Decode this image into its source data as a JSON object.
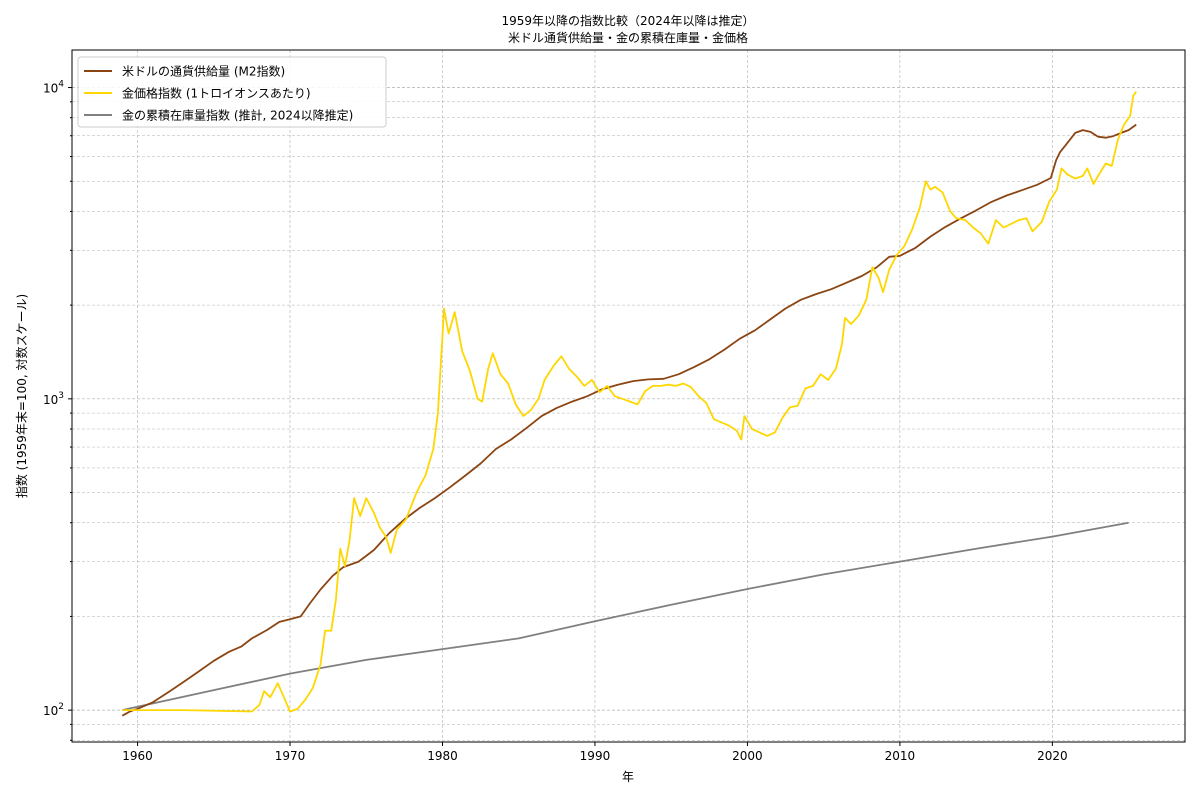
{
  "chart_data": {
    "type": "line",
    "title": "1959年以降の指数比較（2024年以降は推定）",
    "subtitle": "米ドル通貨供給量・金の累積在庫量・金価格",
    "xlabel": "年",
    "ylabel": "指数 (1959年末=100, 対数スケール)",
    "y_scale": "log",
    "xlim": [
      1955.7,
      2028.7
    ],
    "ylim": [
      79,
      13200
    ],
    "x_ticks": [
      1960,
      1970,
      1980,
      1990,
      2000,
      2010,
      2020
    ],
    "x_tick_labels": [
      "1960",
      "1970",
      "1980",
      "1990",
      "2000",
      "2010",
      "2020"
    ],
    "y_ticks": [
      100,
      1000,
      10000
    ],
    "y_tick_labels": [
      {
        "base": "10",
        "exp": "2"
      },
      {
        "base": "10",
        "exp": "3"
      },
      {
        "base": "10",
        "exp": "4"
      }
    ],
    "grid": true,
    "legend_position": "top-left",
    "series": [
      {
        "name": "米ドルの通貨供給量 (M2指数)",
        "color": "#8B4513",
        "points": [
          [
            1959.0,
            96
          ],
          [
            1959.5,
            99
          ],
          [
            1960.0,
            101
          ],
          [
            1961.0,
            106
          ],
          [
            1962.0,
            114
          ],
          [
            1963.0,
            123
          ],
          [
            1964.0,
            133
          ],
          [
            1965.0,
            144
          ],
          [
            1966.0,
            154
          ],
          [
            1966.8,
            160
          ],
          [
            1967.5,
            170
          ],
          [
            1968.5,
            181
          ],
          [
            1969.3,
            192
          ],
          [
            1970.0,
            196
          ],
          [
            1970.7,
            200
          ],
          [
            1971.3,
            220
          ],
          [
            1972.0,
            244
          ],
          [
            1972.8,
            270
          ],
          [
            1973.5,
            288
          ],
          [
            1974.5,
            300
          ],
          [
            1975.5,
            327
          ],
          [
            1976.5,
            370
          ],
          [
            1977.5,
            410
          ],
          [
            1978.5,
            446
          ],
          [
            1979.5,
            480
          ],
          [
            1980.5,
            520
          ],
          [
            1981.5,
            567
          ],
          [
            1982.5,
            620
          ],
          [
            1983.5,
            690
          ],
          [
            1984.5,
            740
          ],
          [
            1985.5,
            805
          ],
          [
            1986.5,
            880
          ],
          [
            1987.5,
            935
          ],
          [
            1988.5,
            980
          ],
          [
            1989.5,
            1020
          ],
          [
            1990.5,
            1075
          ],
          [
            1991.5,
            1110
          ],
          [
            1992.5,
            1140
          ],
          [
            1993.5,
            1155
          ],
          [
            1994.5,
            1160
          ],
          [
            1995.5,
            1200
          ],
          [
            1996.5,
            1265
          ],
          [
            1997.5,
            1340
          ],
          [
            1998.5,
            1440
          ],
          [
            1999.5,
            1560
          ],
          [
            2000.5,
            1660
          ],
          [
            2001.5,
            1800
          ],
          [
            2002.5,
            1950
          ],
          [
            2003.5,
            2080
          ],
          [
            2004.5,
            2170
          ],
          [
            2005.5,
            2250
          ],
          [
            2006.5,
            2360
          ],
          [
            2007.5,
            2480
          ],
          [
            2008.5,
            2650
          ],
          [
            2009.3,
            2860
          ],
          [
            2010.0,
            2880
          ],
          [
            2011.0,
            3050
          ],
          [
            2012.0,
            3320
          ],
          [
            2013.0,
            3570
          ],
          [
            2014.0,
            3800
          ],
          [
            2015.0,
            4030
          ],
          [
            2016.0,
            4290
          ],
          [
            2017.0,
            4500
          ],
          [
            2018.0,
            4680
          ],
          [
            2019.0,
            4870
          ],
          [
            2019.9,
            5120
          ],
          [
            2020.25,
            5850
          ],
          [
            2020.5,
            6200
          ],
          [
            2021.0,
            6650
          ],
          [
            2021.5,
            7150
          ],
          [
            2022.0,
            7300
          ],
          [
            2022.5,
            7200
          ],
          [
            2023.0,
            6950
          ],
          [
            2023.5,
            6900
          ],
          [
            2024.0,
            6980
          ],
          [
            2024.5,
            7150
          ],
          [
            2025.0,
            7300
          ],
          [
            2025.5,
            7600
          ]
        ]
      },
      {
        "name": "金価格指数 (1トロイオンスあたり)",
        "color": "#FFD700",
        "points": [
          [
            1959.0,
            100
          ],
          [
            1960.0,
            100
          ],
          [
            1963.0,
            100
          ],
          [
            1967.5,
            99
          ],
          [
            1968.0,
            104
          ],
          [
            1968.3,
            115
          ],
          [
            1968.7,
            110
          ],
          [
            1969.2,
            122
          ],
          [
            1969.6,
            110
          ],
          [
            1970.0,
            99
          ],
          [
            1970.5,
            101
          ],
          [
            1971.0,
            108
          ],
          [
            1971.5,
            118
          ],
          [
            1972.0,
            140
          ],
          [
            1972.3,
            180
          ],
          [
            1972.7,
            180
          ],
          [
            1973.0,
            225
          ],
          [
            1973.3,
            330
          ],
          [
            1973.6,
            290
          ],
          [
            1973.9,
            350
          ],
          [
            1974.2,
            480
          ],
          [
            1974.6,
            420
          ],
          [
            1975.0,
            480
          ],
          [
            1975.5,
            430
          ],
          [
            1975.9,
            385
          ],
          [
            1976.3,
            360
          ],
          [
            1976.6,
            320
          ],
          [
            1977.0,
            380
          ],
          [
            1977.6,
            410
          ],
          [
            1978.3,
            500
          ],
          [
            1978.9,
            570
          ],
          [
            1979.4,
            690
          ],
          [
            1979.7,
            900
          ],
          [
            1980.0,
            1600
          ],
          [
            1980.1,
            1950
          ],
          [
            1980.4,
            1620
          ],
          [
            1980.8,
            1900
          ],
          [
            1981.3,
            1420
          ],
          [
            1981.8,
            1230
          ],
          [
            1982.3,
            1000
          ],
          [
            1982.6,
            980
          ],
          [
            1983.0,
            1250
          ],
          [
            1983.3,
            1400
          ],
          [
            1983.8,
            1200
          ],
          [
            1984.3,
            1120
          ],
          [
            1984.8,
            960
          ],
          [
            1985.3,
            880
          ],
          [
            1985.8,
            920
          ],
          [
            1986.3,
            1000
          ],
          [
            1986.7,
            1150
          ],
          [
            1987.3,
            1280
          ],
          [
            1987.8,
            1370
          ],
          [
            1988.3,
            1250
          ],
          [
            1988.8,
            1180
          ],
          [
            1989.3,
            1100
          ],
          [
            1989.8,
            1150
          ],
          [
            1990.3,
            1050
          ],
          [
            1990.8,
            1100
          ],
          [
            1991.3,
            1020
          ],
          [
            1991.8,
            1000
          ],
          [
            1992.3,
            980
          ],
          [
            1992.8,
            960
          ],
          [
            1993.3,
            1060
          ],
          [
            1993.8,
            1100
          ],
          [
            1994.3,
            1100
          ],
          [
            1994.8,
            1110
          ],
          [
            1995.3,
            1100
          ],
          [
            1995.8,
            1120
          ],
          [
            1996.3,
            1090
          ],
          [
            1996.8,
            1020
          ],
          [
            1997.3,
            970
          ],
          [
            1997.8,
            860
          ],
          [
            1998.3,
            840
          ],
          [
            1998.8,
            820
          ],
          [
            1999.3,
            790
          ],
          [
            1999.6,
            740
          ],
          [
            1999.8,
            880
          ],
          [
            2000.3,
            800
          ],
          [
            2000.8,
            780
          ],
          [
            2001.3,
            760
          ],
          [
            2001.8,
            780
          ],
          [
            2002.3,
            870
          ],
          [
            2002.8,
            940
          ],
          [
            2003.3,
            950
          ],
          [
            2003.8,
            1080
          ],
          [
            2004.3,
            1100
          ],
          [
            2004.8,
            1200
          ],
          [
            2005.3,
            1150
          ],
          [
            2005.8,
            1250
          ],
          [
            2006.2,
            1500
          ],
          [
            2006.4,
            1820
          ],
          [
            2006.8,
            1740
          ],
          [
            2007.3,
            1850
          ],
          [
            2007.8,
            2080
          ],
          [
            2008.2,
            2650
          ],
          [
            2008.6,
            2450
          ],
          [
            2008.9,
            2200
          ],
          [
            2009.3,
            2600
          ],
          [
            2009.8,
            2900
          ],
          [
            2010.3,
            3100
          ],
          [
            2010.8,
            3500
          ],
          [
            2011.3,
            4100
          ],
          [
            2011.7,
            5000
          ],
          [
            2012.0,
            4700
          ],
          [
            2012.3,
            4800
          ],
          [
            2012.8,
            4600
          ],
          [
            2013.3,
            4000
          ],
          [
            2013.7,
            3800
          ],
          [
            2014.3,
            3750
          ],
          [
            2014.8,
            3550
          ],
          [
            2015.3,
            3400
          ],
          [
            2015.8,
            3150
          ],
          [
            2016.3,
            3750
          ],
          [
            2016.8,
            3550
          ],
          [
            2017.3,
            3650
          ],
          [
            2017.8,
            3750
          ],
          [
            2018.3,
            3800
          ],
          [
            2018.7,
            3450
          ],
          [
            2019.3,
            3700
          ],
          [
            2019.8,
            4300
          ],
          [
            2020.3,
            4700
          ],
          [
            2020.6,
            5500
          ],
          [
            2021.0,
            5250
          ],
          [
            2021.5,
            5100
          ],
          [
            2022.0,
            5200
          ],
          [
            2022.3,
            5500
          ],
          [
            2022.7,
            4900
          ],
          [
            2023.0,
            5200
          ],
          [
            2023.5,
            5700
          ],
          [
            2023.9,
            5600
          ],
          [
            2024.3,
            6800
          ],
          [
            2024.7,
            7600
          ],
          [
            2025.1,
            8100
          ],
          [
            2025.3,
            9400
          ],
          [
            2025.5,
            9700
          ]
        ]
      },
      {
        "name": "金の累積在庫量指数 (推計, 2024以降推定)",
        "color": "#808080",
        "points": [
          [
            1959.0,
            100
          ],
          [
            1965.0,
            116
          ],
          [
            1970.0,
            131
          ],
          [
            1975.0,
            145
          ],
          [
            1980.0,
            157
          ],
          [
            1985.0,
            170
          ],
          [
            1990.0,
            193
          ],
          [
            1995.0,
            218
          ],
          [
            2000.0,
            245
          ],
          [
            2005.0,
            273
          ],
          [
            2010.0,
            300
          ],
          [
            2015.0,
            330
          ],
          [
            2020.0,
            361
          ],
          [
            2025.0,
            400
          ]
        ]
      }
    ]
  }
}
